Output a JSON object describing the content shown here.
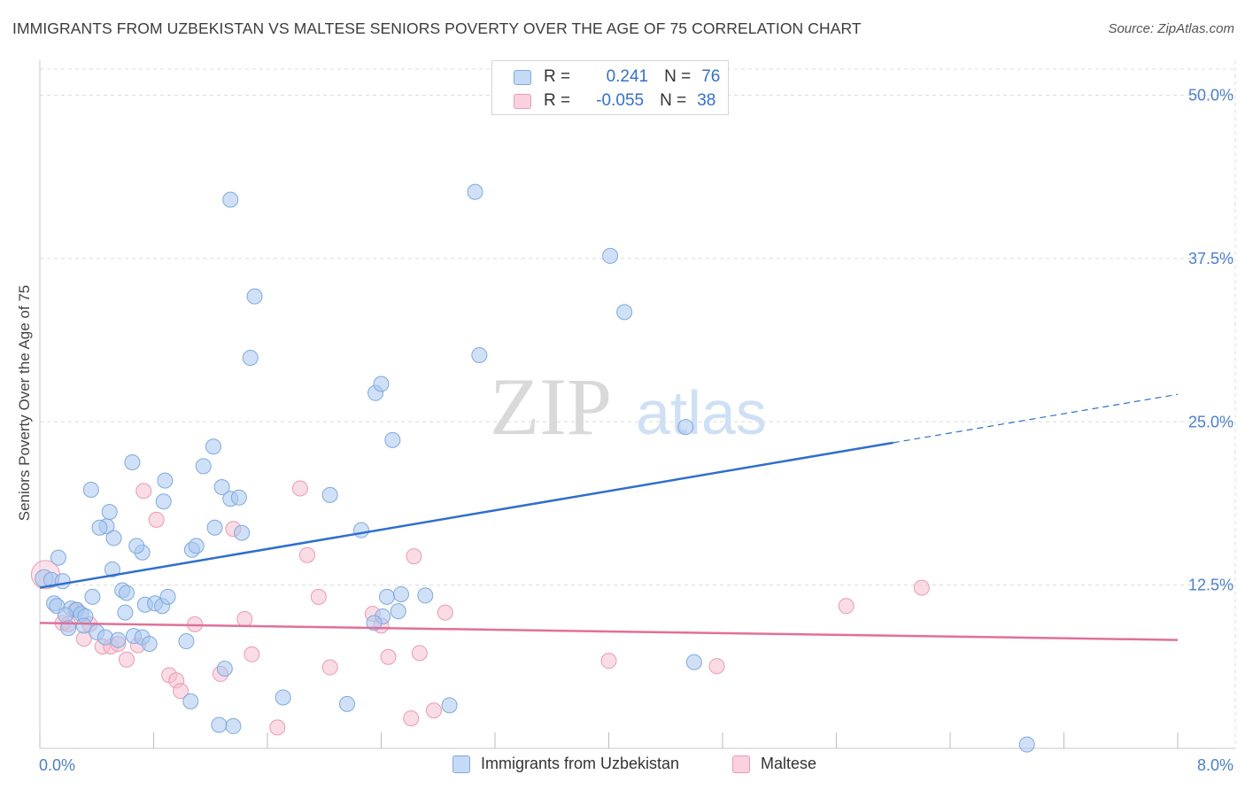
{
  "title": "IMMIGRANTS FROM UZBEKISTAN VS MALTESE SENIORS POVERTY OVER THE AGE OF 75 CORRELATION CHART",
  "source": "Source: ZipAtlas.com",
  "watermark": {
    "zip": "ZIP",
    "atlas": "atlas"
  },
  "legend": {
    "rows": [
      {
        "r_label": "R =",
        "r_value": "0.241",
        "n_label": "N =",
        "n_value": "76"
      },
      {
        "r_label": "R =",
        "r_value": "-0.055",
        "n_label": "N =",
        "n_value": "38"
      }
    ]
  },
  "bottom_legend": {
    "series_a": "Immigrants from Uzbekistan",
    "series_b": "Maltese"
  },
  "colors": {
    "blue_fill": "#a9c8f0",
    "blue_stroke": "#7fa9df",
    "blue_line": "#2f6fcc",
    "pink_fill": "#f6bfd0",
    "pink_stroke": "#ec9ab4",
    "pink_line": "#e0709a",
    "tick_label": "#4a7fcc",
    "grid": "#dcdcdc"
  },
  "chart_data": {
    "type": "scatter",
    "title": "IMMIGRANTS FROM UZBEKISTAN VS MALTESE SENIORS POVERTY OVER THE AGE OF 75 CORRELATION CHART",
    "xlabel": "",
    "ylabel": "Seniors Poverty Over the Age of 75",
    "xlim": [
      0,
      8
    ],
    "ylim": [
      0,
      52
    ],
    "x_tick_labels": {
      "min": "0.0%",
      "max": "8.0%"
    },
    "y_ticks": [
      12.5,
      25.0,
      37.5,
      50.0
    ],
    "y_tick_labels": [
      "12.5%",
      "25.0%",
      "37.5%",
      "50.0%"
    ],
    "grid": true,
    "legend_position": "top-center",
    "series": [
      {
        "name": "Immigrants from Uzbekistan",
        "color": "#a9c8f0",
        "trend": {
          "x0": 0.0,
          "y0": 12.3,
          "x1": 6.0,
          "y1": 23.4,
          "dash_x1": 8.0,
          "dash_y1": 27.1
        },
        "points": [
          [
            0.03,
            13.0
          ],
          [
            0.08,
            12.9
          ],
          [
            0.13,
            14.6
          ],
          [
            0.16,
            12.8
          ],
          [
            0.1,
            11.1
          ],
          [
            0.12,
            10.9
          ],
          [
            0.22,
            10.7
          ],
          [
            0.26,
            10.6
          ],
          [
            0.18,
            10.2
          ],
          [
            0.29,
            10.3
          ],
          [
            0.32,
            10.1
          ],
          [
            0.2,
            9.2
          ],
          [
            0.31,
            9.4
          ],
          [
            0.4,
            8.9
          ],
          [
            0.46,
            8.5
          ],
          [
            0.37,
            11.6
          ],
          [
            0.55,
            8.3
          ],
          [
            0.6,
            10.4
          ],
          [
            0.66,
            8.6
          ],
          [
            0.72,
            8.5
          ],
          [
            0.74,
            11.0
          ],
          [
            0.77,
            8.0
          ],
          [
            0.81,
            11.1
          ],
          [
            0.86,
            10.9
          ],
          [
            0.9,
            11.6
          ],
          [
            0.72,
            15.0
          ],
          [
            0.68,
            15.5
          ],
          [
            0.58,
            12.1
          ],
          [
            0.61,
            11.9
          ],
          [
            0.51,
            13.7
          ],
          [
            0.47,
            17.0
          ],
          [
            0.42,
            16.9
          ],
          [
            0.52,
            16.1
          ],
          [
            0.36,
            19.8
          ],
          [
            0.49,
            18.1
          ],
          [
            0.65,
            21.9
          ],
          [
            0.88,
            20.5
          ],
          [
            0.87,
            18.9
          ],
          [
            1.15,
            21.6
          ],
          [
            1.07,
            15.2
          ],
          [
            1.1,
            15.5
          ],
          [
            1.23,
            16.9
          ],
          [
            1.22,
            23.1
          ],
          [
            1.28,
            20.0
          ],
          [
            1.34,
            19.1
          ],
          [
            1.4,
            19.2
          ],
          [
            1.42,
            16.5
          ],
          [
            1.51,
            34.6
          ],
          [
            1.48,
            29.9
          ],
          [
            1.34,
            42.0
          ],
          [
            2.04,
            19.4
          ],
          [
            2.26,
            16.7
          ],
          [
            2.36,
            27.2
          ],
          [
            2.4,
            27.9
          ],
          [
            2.48,
            23.6
          ],
          [
            2.44,
            11.6
          ],
          [
            2.54,
            11.8
          ],
          [
            2.52,
            10.5
          ],
          [
            2.71,
            11.7
          ],
          [
            2.41,
            10.1
          ],
          [
            2.35,
            9.6
          ],
          [
            3.06,
            42.6
          ],
          [
            3.09,
            30.1
          ],
          [
            4.01,
            37.7
          ],
          [
            4.11,
            33.4
          ],
          [
            4.54,
            24.6
          ],
          [
            1.3,
            6.1
          ],
          [
            1.36,
            1.7
          ],
          [
            1.26,
            1.8
          ],
          [
            1.03,
            8.2
          ],
          [
            1.06,
            3.6
          ],
          [
            1.71,
            3.9
          ],
          [
            2.16,
            3.4
          ],
          [
            2.88,
            3.3
          ],
          [
            6.94,
            0.3
          ],
          [
            4.6,
            6.6
          ]
        ]
      },
      {
        "name": "Maltese",
        "color": "#f6bfd0",
        "trend": {
          "x0": 0.0,
          "y0": 9.6,
          "x1": 8.0,
          "y1": 8.3
        },
        "points": [
          [
            0.04,
            13.3
          ],
          [
            0.16,
            9.6
          ],
          [
            0.2,
            9.5
          ],
          [
            0.25,
            10.6
          ],
          [
            0.31,
            8.4
          ],
          [
            0.35,
            9.5
          ],
          [
            0.44,
            7.8
          ],
          [
            0.5,
            7.8
          ],
          [
            0.55,
            8.0
          ],
          [
            0.61,
            6.8
          ],
          [
            0.69,
            7.9
          ],
          [
            0.73,
            19.7
          ],
          [
            0.82,
            17.5
          ],
          [
            0.91,
            5.6
          ],
          [
            0.96,
            5.2
          ],
          [
            0.99,
            4.4
          ],
          [
            1.09,
            9.5
          ],
          [
            1.27,
            5.7
          ],
          [
            1.36,
            16.8
          ],
          [
            1.44,
            9.9
          ],
          [
            1.49,
            7.2
          ],
          [
            1.67,
            1.6
          ],
          [
            1.83,
            19.9
          ],
          [
            1.88,
            14.8
          ],
          [
            1.96,
            11.6
          ],
          [
            2.04,
            6.2
          ],
          [
            2.34,
            10.3
          ],
          [
            2.4,
            9.4
          ],
          [
            2.45,
            7.0
          ],
          [
            2.63,
            14.7
          ],
          [
            2.61,
            2.3
          ],
          [
            2.67,
            7.3
          ],
          [
            2.77,
            2.9
          ],
          [
            2.85,
            10.4
          ],
          [
            4.0,
            6.7
          ],
          [
            4.76,
            6.3
          ],
          [
            5.67,
            10.9
          ],
          [
            6.2,
            12.3
          ]
        ]
      }
    ]
  }
}
